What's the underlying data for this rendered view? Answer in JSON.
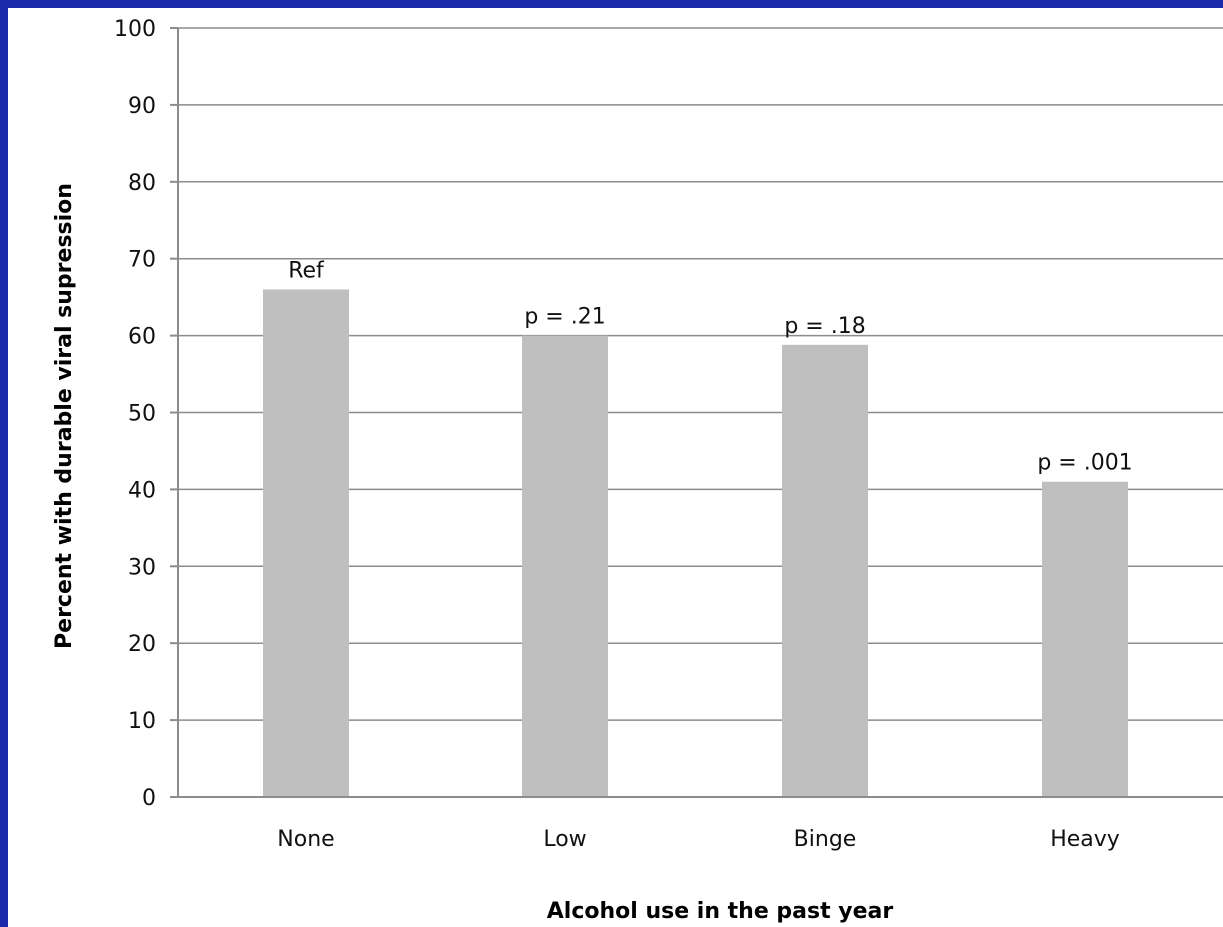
{
  "chart_data": {
    "type": "bar",
    "title": "",
    "xlabel": "Alcohol use in the past year",
    "ylabel": "Percent  with durable viral supression",
    "categories": [
      "None",
      "Low",
      "Binge",
      "Heavy"
    ],
    "values": [
      66,
      60,
      58.8,
      41
    ],
    "data_labels": [
      "Ref",
      "p = .21",
      "p = .18",
      "p = .001"
    ],
    "ylim": [
      0,
      100
    ],
    "yticks": [
      0,
      10,
      20,
      30,
      40,
      50,
      60,
      70,
      80,
      90,
      100
    ],
    "grid": true,
    "legend": "none",
    "bar_color": "#bfbfbf",
    "grid_color": "#8c8c8c",
    "frame_color": "#1a2aa8"
  }
}
